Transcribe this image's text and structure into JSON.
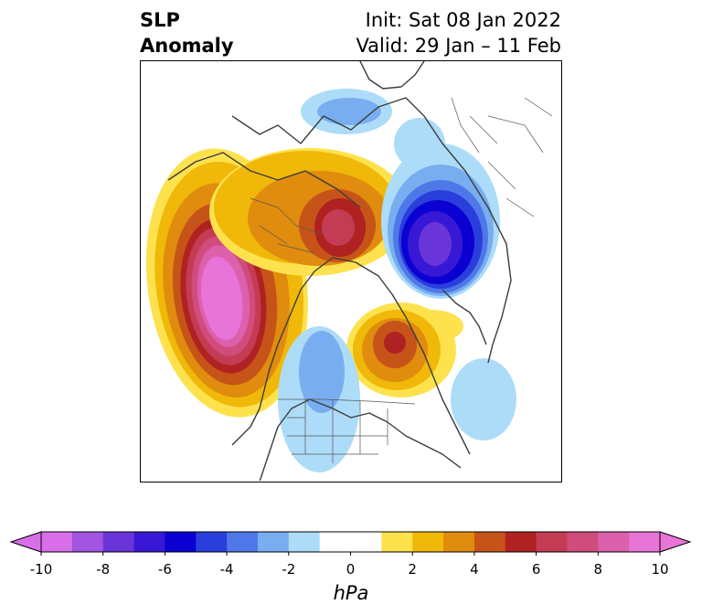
{
  "title": {
    "variable_line1": "SLP",
    "variable_line2": "Anomaly",
    "init": "Init: Sat 08 Jan 2022",
    "valid": "Valid: 29 Jan – 11 Feb"
  },
  "map": {
    "projection": "polar stereographic (North Pole)",
    "features": [
      "country-borders",
      "us-state-borders",
      "coastlines"
    ],
    "anomaly_regions": [
      {
        "name": "north-pacific-high",
        "peak_value": 10
      },
      {
        "name": "siberia-arctic-high",
        "peak_value": 7
      },
      {
        "name": "scandinavia-russia-low",
        "peak_value": -8
      },
      {
        "name": "greenland-canada-high",
        "peak_value": 6
      },
      {
        "name": "western-us-low",
        "peak_value": -3
      },
      {
        "name": "central-atlantic-low",
        "peak_value": -2
      }
    ]
  },
  "colorbar": {
    "levels": [
      -10,
      -9,
      -8,
      -7,
      -6,
      -5,
      -4,
      -3,
      -2,
      -1,
      1,
      2,
      3,
      4,
      5,
      6,
      7,
      8,
      9,
      10
    ],
    "colors": [
      "#d86fe8",
      "#a155e0",
      "#6a35d8",
      "#3818d4",
      "#0a00d2",
      "#2a3edc",
      "#4e78e8",
      "#78aef0",
      "#acdcf8",
      "#ffffff",
      "#fde24e",
      "#f0b808",
      "#e08c0e",
      "#c65418",
      "#b02222",
      "#c43c54",
      "#d04c7c",
      "#dc60ac",
      "#e874d8"
    ],
    "extend_min_color": "#d86fe8",
    "extend_max_color": "#e874d8",
    "tick_values": [
      -10,
      -8,
      -6,
      -4,
      -2,
      0,
      2,
      4,
      6,
      8,
      10
    ],
    "tick_labels": [
      "-10",
      "-8",
      "-6",
      "-4",
      "-2",
      "0",
      "2",
      "4",
      "6",
      "8",
      "10"
    ],
    "unit": "hPa"
  }
}
